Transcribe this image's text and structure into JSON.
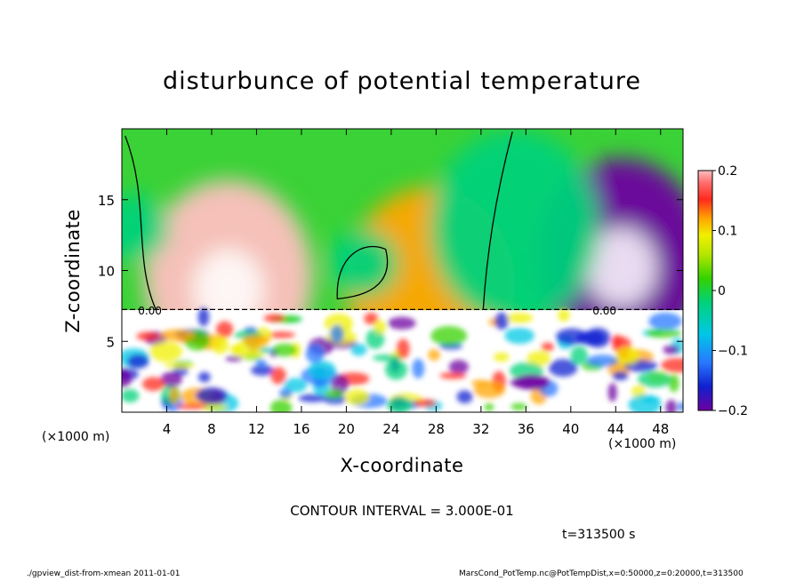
{
  "chart_data": {
    "type": "heatmap",
    "title": "disturbunce of potential temperature",
    "xlabel": "X-coordinate",
    "ylabel": "Z-coordinate",
    "xunit_left": "(×1000 m)",
    "xunit_right": "(×1000 m)",
    "xlim": [
      0,
      50
    ],
    "ylim": [
      0,
      20
    ],
    "xticks": [
      4,
      8,
      12,
      16,
      20,
      24,
      28,
      32,
      36,
      40,
      44,
      48
    ],
    "yticks": [
      5,
      10,
      15
    ],
    "colorbar": {
      "min": -0.2,
      "max": 0.2,
      "ticks": [
        "0.2",
        "0.1",
        "0",
        "−0.1",
        "−0.2"
      ],
      "tick_values": [
        0.2,
        0.1,
        0,
        -0.1,
        -0.2
      ]
    },
    "contour_labels": [
      "0.00",
      "0.00"
    ],
    "contour_interval_text": "CONTOUR INTERVAL = 3.000E-01",
    "time_text": "t=313500 s",
    "upper_anomalies": [
      {
        "x": 9.5,
        "z": 9.5,
        "value": 0.2
      },
      {
        "x": 27.5,
        "z": 9.0,
        "value": 0.12
      },
      {
        "x": 21.5,
        "z": 10.5,
        "value": 0.0
      },
      {
        "x": 44.5,
        "z": 11.0,
        "value": -0.2
      },
      {
        "x": 1.0,
        "z": 13.0,
        "value": 0.0
      },
      {
        "x": 35.0,
        "z": 13.0,
        "value": -0.04
      }
    ]
  },
  "footer": {
    "left": "./gpview_dist-from-xmean  2011-01-01",
    "right": "MarsCond_PotTemp.nc@PotTempDist,x=0:50000,z=0:20000,t=313500"
  }
}
